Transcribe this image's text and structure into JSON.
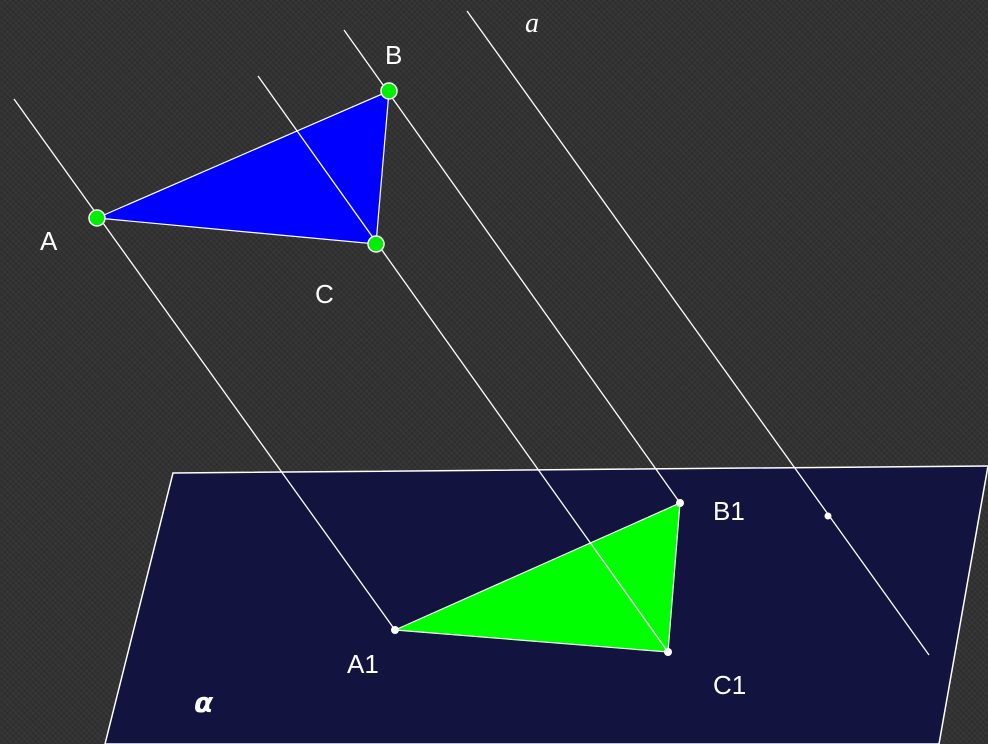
{
  "labels": {
    "A": "A",
    "B": "B",
    "C": "C",
    "A1": "A1",
    "B1": "B1",
    "C1": "C1",
    "line_a": "a",
    "plane": "α"
  },
  "colors": {
    "plane_fill": "#13133f",
    "plane_edge": "#ffffff",
    "original_triangle": "#0000ff",
    "projected_triangle": "#00ff00",
    "vertex_point": "#00ee00",
    "projection_point": "#ffffff",
    "lines": "#ffffff"
  }
}
